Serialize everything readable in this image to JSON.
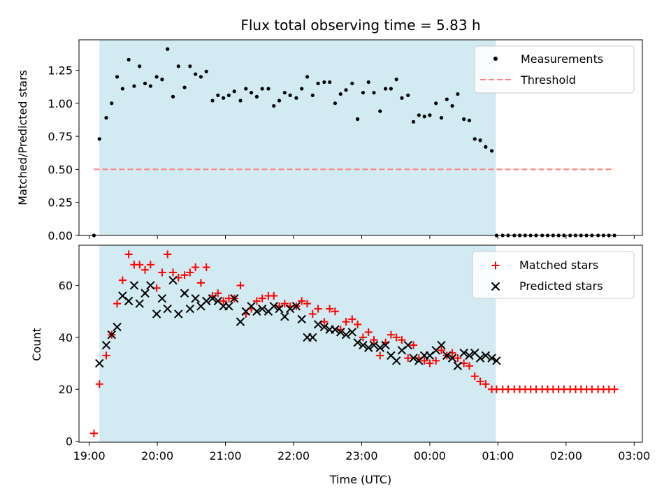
{
  "chart_data": [
    {
      "type": "scatter",
      "title": "Flux total observing time = 5.83 h",
      "xlabel": "",
      "ylabel": "Matched/Predicted stars",
      "xlim": [
        18.85,
        27.12
      ],
      "ylim": [
        0,
        1.48
      ],
      "x_tick_values": [
        19,
        20,
        21,
        22,
        23,
        24,
        25,
        26,
        27
      ],
      "y_ticks": [
        "0.00",
        "0.25",
        "0.50",
        "0.75",
        "1.00",
        "1.25"
      ],
      "y_tick_values": [
        0,
        0.25,
        0.5,
        0.75,
        1.0,
        1.25
      ],
      "shaded_region": [
        19.15,
        24.97
      ],
      "shade_color": "#add8e6",
      "grid": false,
      "legend_position": "top-right",
      "series": [
        {
          "name": "Measurements",
          "kind": "points",
          "color": "#000000",
          "x": [
            19.07,
            19.15,
            19.25,
            19.33,
            19.41,
            19.49,
            19.58,
            19.66,
            19.74,
            19.82,
            19.9,
            19.99,
            20.07,
            20.15,
            20.23,
            20.31,
            20.4,
            20.48,
            20.56,
            20.64,
            20.72,
            20.81,
            20.89,
            20.97,
            21.05,
            21.13,
            21.22,
            21.3,
            21.38,
            21.46,
            21.54,
            21.63,
            21.71,
            21.79,
            21.87,
            21.95,
            22.04,
            22.12,
            22.2,
            22.28,
            22.36,
            22.45,
            22.53,
            22.61,
            22.69,
            22.77,
            22.86,
            22.94,
            23.02,
            23.1,
            23.18,
            23.27,
            23.35,
            23.43,
            23.51,
            23.59,
            23.68,
            23.76,
            23.84,
            23.92,
            24.0,
            24.09,
            24.17,
            24.25,
            24.33,
            24.41,
            24.5,
            24.58,
            24.66,
            24.74,
            24.82,
            24.91,
            24.98,
            25.07,
            25.15,
            25.24,
            25.32,
            25.4,
            25.48,
            25.56,
            25.65,
            25.73,
            25.81,
            25.89,
            25.97,
            26.06,
            26.14,
            26.22,
            26.3,
            26.38,
            26.47,
            26.55,
            26.63,
            26.71
          ],
          "y": [
            0.0,
            0.73,
            0.89,
            1.0,
            1.2,
            1.11,
            1.33,
            1.13,
            1.28,
            1.15,
            1.13,
            1.2,
            1.18,
            1.41,
            1.05,
            1.28,
            1.12,
            1.28,
            1.22,
            1.2,
            1.24,
            1.02,
            1.06,
            1.04,
            1.06,
            1.09,
            1.02,
            1.11,
            1.08,
            1.05,
            1.11,
            1.11,
            0.98,
            1.02,
            1.08,
            1.06,
            1.04,
            1.11,
            1.2,
            1.06,
            1.15,
            1.16,
            1.16,
            1.0,
            1.07,
            1.1,
            1.15,
            0.88,
            1.08,
            1.16,
            1.08,
            0.94,
            1.11,
            1.11,
            1.18,
            1.04,
            1.06,
            0.86,
            0.91,
            0.9,
            0.91,
            1.0,
            0.89,
            1.03,
            0.98,
            1.07,
            0.88,
            0.87,
            0.73,
            0.72,
            0.67,
            0.64,
            0.0,
            0.0,
            0.0,
            0.0,
            0.0,
            0.0,
            0.0,
            0.0,
            0.0,
            0.0,
            0.0,
            0.0,
            0.0,
            0.0,
            0.0,
            0.0,
            0.0,
            0.0,
            0.0,
            0.0,
            0.0,
            0.0
          ]
        },
        {
          "name": "Threshold",
          "kind": "dashed-line",
          "color": "#ff7f7f",
          "x": [
            19.07,
            26.71
          ],
          "y": [
            0.5,
            0.5
          ]
        }
      ]
    },
    {
      "type": "scatter",
      "title": "",
      "xlabel": "Time (UTC)",
      "ylabel": "Count",
      "xlim": [
        18.85,
        27.12
      ],
      "ylim": [
        -0.4,
        75.5
      ],
      "x_ticks": [
        "19:00",
        "20:00",
        "21:00",
        "22:00",
        "23:00",
        "00:00",
        "01:00",
        "02:00",
        "03:00"
      ],
      "x_tick_values": [
        19,
        20,
        21,
        22,
        23,
        24,
        25,
        26,
        27
      ],
      "y_ticks": [
        "0",
        "20",
        "40",
        "60"
      ],
      "y_tick_values": [
        0,
        20,
        40,
        60
      ],
      "shaded_region": [
        19.15,
        24.97
      ],
      "shade_color": "#add8e6",
      "grid": false,
      "legend_position": "top-right",
      "series": [
        {
          "name": "Matched stars",
          "kind": "plus",
          "color": "#ff0000",
          "x": [
            19.07,
            19.15,
            19.25,
            19.33,
            19.41,
            19.49,
            19.58,
            19.66,
            19.74,
            19.82,
            19.9,
            19.99,
            20.07,
            20.15,
            20.23,
            20.31,
            20.4,
            20.48,
            20.56,
            20.64,
            20.72,
            20.81,
            20.89,
            20.97,
            21.05,
            21.13,
            21.22,
            21.3,
            21.38,
            21.46,
            21.54,
            21.63,
            21.71,
            21.79,
            21.87,
            21.95,
            22.04,
            22.12,
            22.2,
            22.28,
            22.36,
            22.45,
            22.53,
            22.61,
            22.69,
            22.77,
            22.86,
            22.94,
            23.02,
            23.1,
            23.18,
            23.27,
            23.35,
            23.43,
            23.51,
            23.59,
            23.68,
            23.76,
            23.84,
            23.92,
            24.0,
            24.09,
            24.17,
            24.25,
            24.33,
            24.41,
            24.5,
            24.58,
            24.66,
            24.74,
            24.82,
            24.91,
            24.98,
            25.07,
            25.15,
            25.24,
            25.32,
            25.4,
            25.48,
            25.56,
            25.65,
            25.73,
            25.81,
            25.89,
            25.97,
            26.06,
            26.14,
            26.22,
            26.3,
            26.38,
            26.47,
            26.55,
            26.63,
            26.71
          ],
          "y": [
            3,
            22,
            33,
            41,
            53,
            62,
            72,
            68,
            68,
            66,
            68,
            59,
            65,
            72,
            65,
            63,
            64,
            65,
            67,
            61,
            67,
            56,
            57,
            54,
            55,
            55,
            60,
            49,
            51,
            54,
            55,
            56,
            56,
            52,
            53,
            52,
            52,
            54,
            53,
            49,
            51,
            46,
            51,
            50,
            43,
            46,
            47,
            45,
            40,
            42,
            39,
            33,
            38,
            41,
            40,
            39,
            32,
            37,
            32,
            31,
            30,
            31,
            35,
            33,
            34,
            32,
            30,
            29,
            25,
            23,
            22,
            20,
            20,
            20,
            20,
            20,
            20,
            20,
            20,
            20,
            20,
            20,
            20,
            20,
            20,
            20,
            20,
            20,
            20,
            20,
            20,
            20,
            20,
            20
          ]
        },
        {
          "name": "Predicted stars",
          "kind": "x",
          "color": "#000000",
          "x": [
            19.15,
            19.25,
            19.33,
            19.41,
            19.49,
            19.58,
            19.66,
            19.74,
            19.82,
            19.9,
            19.99,
            20.07,
            20.15,
            20.23,
            20.31,
            20.4,
            20.48,
            20.56,
            20.64,
            20.72,
            20.81,
            20.89,
            20.97,
            21.05,
            21.13,
            21.22,
            21.3,
            21.38,
            21.46,
            21.54,
            21.63,
            21.71,
            21.79,
            21.87,
            21.95,
            22.04,
            22.12,
            22.2,
            22.28,
            22.36,
            22.45,
            22.53,
            22.61,
            22.69,
            22.77,
            22.86,
            22.94,
            23.02,
            23.1,
            23.18,
            23.27,
            23.35,
            23.43,
            23.51,
            23.59,
            23.68,
            23.76,
            23.84,
            23.92,
            24.0,
            24.09,
            24.17,
            24.25,
            24.33,
            24.41,
            24.5,
            24.58,
            24.66,
            24.74,
            24.82,
            24.91,
            24.98
          ],
          "y": [
            30,
            37,
            41,
            44,
            56,
            54,
            60,
            53,
            57,
            60,
            49,
            55,
            51,
            62,
            49,
            57,
            51,
            55,
            52,
            54,
            55,
            54,
            52,
            52,
            55,
            46,
            50,
            52,
            50,
            51,
            50,
            52,
            51,
            48,
            51,
            52,
            47,
            40,
            40,
            45,
            44,
            43,
            43,
            42,
            41,
            42,
            38,
            37,
            36,
            37,
            36,
            37,
            33,
            31,
            35,
            37,
            32,
            31,
            33,
            33,
            35,
            37,
            33,
            32,
            29,
            34,
            33,
            34,
            32,
            33,
            32,
            31
          ]
        }
      ]
    }
  ]
}
